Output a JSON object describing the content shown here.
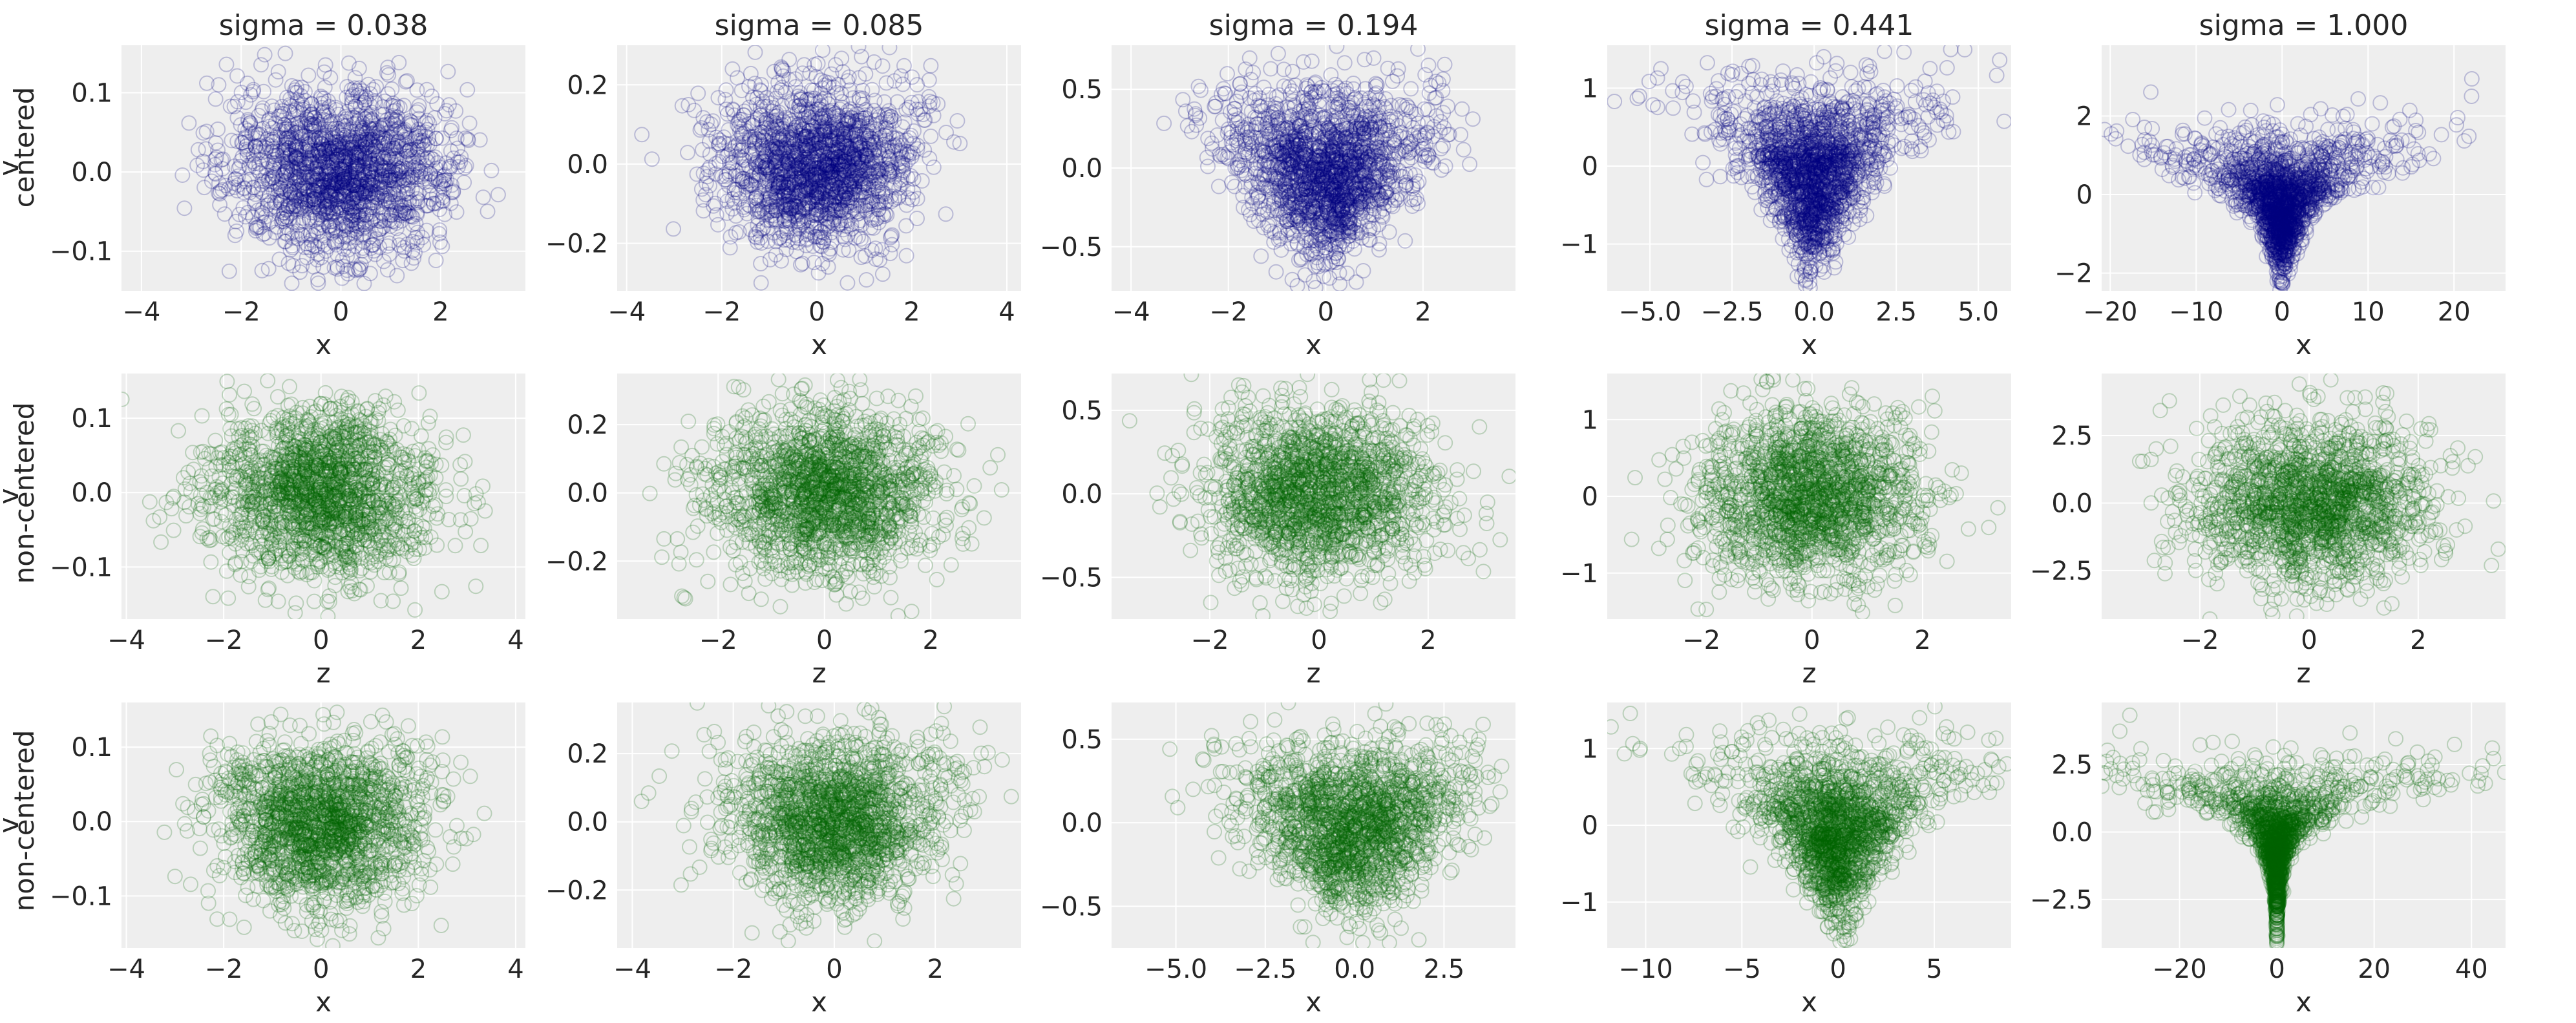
{
  "figure": {
    "background": "#ffffff",
    "panel_background": "#eeeeee",
    "grid_color": "#ffffff",
    "colors": {
      "centered": "#00007f",
      "non_centered": "#006400"
    },
    "row_labels": [
      "centered",
      "non-centered",
      "non-centered"
    ],
    "column_titles": [
      "sigma = 0.038",
      "sigma = 0.085",
      "sigma = 0.194",
      "sigma = 0.441",
      "sigma = 1.000"
    ]
  },
  "chart_data": [
    {
      "type": "scatter",
      "row": 0,
      "col": 0,
      "title": "sigma = 0.038",
      "xlabel": "x",
      "ylabel": "v",
      "color": "#00007f",
      "sigma": 0.038,
      "shape": "funnel",
      "xlim": [
        -4.4,
        3.7
      ],
      "ylim": [
        -0.15,
        0.16
      ],
      "xticks": [
        -4,
        -2,
        0,
        2
      ],
      "xtick_labels": [
        "−4",
        "−2",
        "0",
        "2"
      ],
      "yticks": [
        -0.1,
        0.0,
        0.1
      ],
      "ytick_labels": [
        "−0.1",
        "0.0",
        "0.1"
      ]
    },
    {
      "type": "scatter",
      "row": 0,
      "col": 1,
      "title": "sigma = 0.085",
      "xlabel": "x",
      "ylabel": "",
      "color": "#00007f",
      "sigma": 0.085,
      "shape": "funnel",
      "xlim": [
        -4.2,
        4.3
      ],
      "ylim": [
        -0.32,
        0.3
      ],
      "xticks": [
        -4,
        -2,
        0,
        2,
        4
      ],
      "xtick_labels": [
        "−4",
        "−2",
        "0",
        "2",
        "4"
      ],
      "yticks": [
        -0.2,
        0.0,
        0.2
      ],
      "ytick_labels": [
        "−0.2",
        "0.0",
        "0.2"
      ]
    },
    {
      "type": "scatter",
      "row": 0,
      "col": 2,
      "title": "sigma = 0.194",
      "xlabel": "x",
      "ylabel": "",
      "color": "#00007f",
      "sigma": 0.194,
      "shape": "funnel",
      "xlim": [
        -4.4,
        3.9
      ],
      "ylim": [
        -0.78,
        0.78
      ],
      "xticks": [
        -4,
        -2,
        0,
        2
      ],
      "xtick_labels": [
        "−4",
        "−2",
        "0",
        "2"
      ],
      "yticks": [
        -0.5,
        0.0,
        0.5
      ],
      "ytick_labels": [
        "−0.5",
        "0.0",
        "0.5"
      ]
    },
    {
      "type": "scatter",
      "row": 0,
      "col": 3,
      "title": "sigma = 0.441",
      "xlabel": "x",
      "ylabel": "",
      "color": "#00007f",
      "sigma": 0.441,
      "shape": "funnel",
      "xlim": [
        -6.3,
        6.0
      ],
      "ylim": [
        -1.6,
        1.55
      ],
      "xticks": [
        -5.0,
        -2.5,
        0.0,
        2.5,
        5.0
      ],
      "xtick_labels": [
        "−5.0",
        "−2.5",
        "0.0",
        "2.5",
        "5.0"
      ],
      "yticks": [
        -1,
        0,
        1
      ],
      "ytick_labels": [
        "−1",
        "0",
        "1"
      ]
    },
    {
      "type": "scatter",
      "row": 0,
      "col": 4,
      "title": "sigma = 1.000",
      "xlabel": "x",
      "ylabel": "",
      "color": "#00007f",
      "sigma": 1.0,
      "shape": "funnel",
      "xlim": [
        -21,
        26
      ],
      "ylim": [
        -2.45,
        3.8
      ],
      "xticks": [
        -20,
        -10,
        0,
        10,
        20
      ],
      "xtick_labels": [
        "−20",
        "−10",
        "0",
        "10",
        "20"
      ],
      "yticks": [
        -2,
        0,
        2
      ],
      "ytick_labels": [
        "−2",
        "0",
        "2"
      ]
    },
    {
      "type": "scatter",
      "row": 1,
      "col": 0,
      "title": "",
      "xlabel": "z",
      "ylabel": "v",
      "color": "#006400",
      "sigma": 0.038,
      "shape": "blob",
      "xlim": [
        -4.1,
        4.2
      ],
      "ylim": [
        -0.17,
        0.16
      ],
      "xticks": [
        -4,
        -2,
        0,
        2,
        4
      ],
      "xtick_labels": [
        "−4",
        "−2",
        "0",
        "2",
        "4"
      ],
      "yticks": [
        -0.1,
        0.0,
        0.1
      ],
      "ytick_labels": [
        "−0.1",
        "0.0",
        "0.1"
      ]
    },
    {
      "type": "scatter",
      "row": 1,
      "col": 1,
      "title": "",
      "xlabel": "z",
      "ylabel": "",
      "color": "#006400",
      "sigma": 0.085,
      "shape": "blob",
      "xlim": [
        -3.9,
        3.7
      ],
      "ylim": [
        -0.37,
        0.35
      ],
      "xticks": [
        -2,
        0,
        2
      ],
      "xtick_labels": [
        "−2",
        "0",
        "2"
      ],
      "yticks": [
        -0.2,
        0.0,
        0.2
      ],
      "ytick_labels": [
        "−0.2",
        "0.0",
        "0.2"
      ]
    },
    {
      "type": "scatter",
      "row": 1,
      "col": 2,
      "title": "",
      "xlabel": "z",
      "ylabel": "",
      "color": "#006400",
      "sigma": 0.194,
      "shape": "blob",
      "xlim": [
        -3.8,
        3.6
      ],
      "ylim": [
        -0.75,
        0.72
      ],
      "xticks": [
        -2,
        0,
        2
      ],
      "xtick_labels": [
        "−2",
        "0",
        "2"
      ],
      "yticks": [
        -0.5,
        0.0,
        0.5
      ],
      "ytick_labels": [
        "−0.5",
        "0.0",
        "0.5"
      ]
    },
    {
      "type": "scatter",
      "row": 1,
      "col": 3,
      "title": "",
      "xlabel": "z",
      "ylabel": "",
      "color": "#006400",
      "sigma": 0.441,
      "shape": "blob",
      "xlim": [
        -3.7,
        3.6
      ],
      "ylim": [
        -1.6,
        1.6
      ],
      "xticks": [
        -2,
        0,
        2
      ],
      "xtick_labels": [
        "−2",
        "0",
        "2"
      ],
      "yticks": [
        -1,
        0,
        1
      ],
      "ytick_labels": [
        "−1",
        "0",
        "1"
      ]
    },
    {
      "type": "scatter",
      "row": 1,
      "col": 4,
      "title": "",
      "xlabel": "z",
      "ylabel": "",
      "color": "#006400",
      "sigma": 1.0,
      "shape": "blob",
      "xlim": [
        -3.8,
        3.6
      ],
      "ylim": [
        -4.3,
        4.8
      ],
      "xticks": [
        -2,
        0,
        2
      ],
      "xtick_labels": [
        "−2",
        "0",
        "2"
      ],
      "yticks": [
        -2.5,
        0.0,
        2.5
      ],
      "ytick_labels": [
        "−2.5",
        "0.0",
        "2.5"
      ]
    },
    {
      "type": "scatter",
      "row": 2,
      "col": 0,
      "title": "",
      "xlabel": "x",
      "ylabel": "v",
      "color": "#006400",
      "sigma": 0.038,
      "shape": "funnel",
      "xlim": [
        -4.1,
        4.2
      ],
      "ylim": [
        -0.17,
        0.16
      ],
      "xticks": [
        -4,
        -2,
        0,
        2,
        4
      ],
      "xtick_labels": [
        "−4",
        "−2",
        "0",
        "2",
        "4"
      ],
      "yticks": [
        -0.1,
        0.0,
        0.1
      ],
      "ytick_labels": [
        "−0.1",
        "0.0",
        "0.1"
      ]
    },
    {
      "type": "scatter",
      "row": 2,
      "col": 1,
      "title": "",
      "xlabel": "x",
      "ylabel": "",
      "color": "#006400",
      "sigma": 0.085,
      "shape": "funnel",
      "xlim": [
        -4.3,
        3.7
      ],
      "ylim": [
        -0.37,
        0.35
      ],
      "xticks": [
        -4,
        -2,
        0,
        2
      ],
      "xtick_labels": [
        "−4",
        "−2",
        "0",
        "2"
      ],
      "yticks": [
        -0.2,
        0.0,
        0.2
      ],
      "ytick_labels": [
        "−0.2",
        "0.0",
        "0.2"
      ]
    },
    {
      "type": "scatter",
      "row": 2,
      "col": 2,
      "title": "",
      "xlabel": "x",
      "ylabel": "",
      "color": "#006400",
      "sigma": 0.194,
      "shape": "funnel",
      "xlim": [
        -6.8,
        4.5
      ],
      "ylim": [
        -0.75,
        0.72
      ],
      "xticks": [
        -5.0,
        -2.5,
        0.0,
        2.5
      ],
      "xtick_labels": [
        "−5.0",
        "−2.5",
        "0.0",
        "2.5"
      ],
      "yticks": [
        -0.5,
        0.0,
        0.5
      ],
      "ytick_labels": [
        "−0.5",
        "0.0",
        "0.5"
      ]
    },
    {
      "type": "scatter",
      "row": 2,
      "col": 3,
      "title": "",
      "xlabel": "x",
      "ylabel": "",
      "color": "#006400",
      "sigma": 0.441,
      "shape": "funnel",
      "xlim": [
        -12,
        9
      ],
      "ylim": [
        -1.6,
        1.6
      ],
      "xticks": [
        -10,
        -5,
        0,
        5
      ],
      "xtick_labels": [
        "−10",
        "−5",
        "0",
        "5"
      ],
      "yticks": [
        -1,
        0,
        1
      ],
      "ytick_labels": [
        "−1",
        "0",
        "1"
      ]
    },
    {
      "type": "scatter",
      "row": 2,
      "col": 4,
      "title": "",
      "xlabel": "x",
      "ylabel": "",
      "color": "#006400",
      "sigma": 1.0,
      "shape": "funnel",
      "xlim": [
        -36,
        47
      ],
      "ylim": [
        -4.3,
        4.8
      ],
      "xticks": [
        -20,
        0,
        20,
        40
      ],
      "xtick_labels": [
        "−20",
        "0",
        "20",
        "40"
      ],
      "yticks": [
        -2.5,
        0.0,
        2.5
      ],
      "ytick_labels": [
        "−2.5",
        "0.0",
        "2.5"
      ]
    }
  ]
}
